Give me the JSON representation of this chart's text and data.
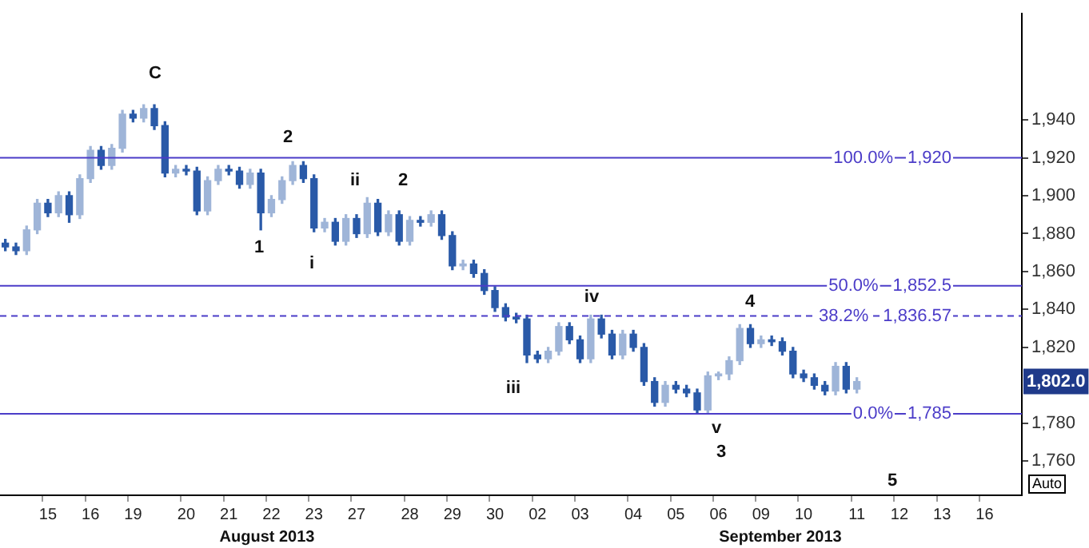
{
  "chart_data": {
    "type": "candlestick",
    "colors": [
      "#2a5aa8",
      "#2a5aa8",
      "#9fb5d8",
      "#9fb5d8",
      "#2a5aa8",
      "#9fb5d8",
      "#2a5aa8",
      "#9fb5d8",
      "#9fb5d8",
      "#2a5aa8",
      "#9fb5d8",
      "#9fb5d8",
      "#2a5aa8",
      "#9fb5d8",
      "#2a5aa8",
      "#2a5aa8",
      "#9fb5d8",
      "#2a5aa8",
      "#2a5aa8",
      "#9fb5d8",
      "#9fb5d8",
      "#2a5aa8",
      "#2a5aa8",
      "#9fb5d8",
      "#2a5aa8",
      "#9fb5d8",
      "#9fb5d8",
      "#9fb5d8",
      "#2a5aa8",
      "#2a5aa8",
      "#9fb5d8",
      "#2a5aa8",
      "#9fb5d8",
      "#2a5aa8",
      "#9fb5d8",
      "#2a5aa8",
      "#9fb5d8",
      "#2a5aa8",
      "#9fb5d8",
      "#2a5aa8",
      "#9fb5d8",
      "#2a5aa8",
      "#2a5aa8",
      "#9fb5d8",
      "#2a5aa8",
      "#2a5aa8",
      "#2a5aa8",
      "#2a5aa8",
      "#2a5aa8",
      "#2a5aa8",
      "#2a5aa8",
      "#9fb5d8",
      "#9fb5d8",
      "#2a5aa8",
      "#2a5aa8",
      "#9fb5d8",
      "#2a5aa8",
      "#2a5aa8",
      "#9fb5d8",
      "#2a5aa8",
      "#2a5aa8",
      "#2a5aa8",
      "#9fb5d8",
      "#2a5aa8",
      "#2a5aa8",
      "#2a5aa8",
      "#9fb5d8",
      "#9fb5d8",
      "#9fb5d8",
      "#9fb5d8",
      "#2a5aa8",
      "#9fb5d8",
      "#2a5aa8",
      "#2a5aa8",
      "#2a5aa8",
      "#2a5aa8",
      "#2a5aa8",
      "#2a5aa8",
      "#9fb5d8",
      "#2a5aa8",
      "#9fb5d8",
      null,
      null,
      null,
      null,
      null,
      null,
      null,
      null,
      null,
      null,
      null,
      null,
      null,
      null,
      null
    ],
    "categories": [
      null,
      null,
      null,
      null,
      "15",
      null,
      null,
      null,
      "16",
      null,
      null,
      null,
      "19",
      null,
      null,
      null,
      null,
      "20",
      null,
      null,
      null,
      "21",
      null,
      null,
      null,
      "22",
      null,
      null,
      null,
      "23",
      null,
      null,
      null,
      "27",
      null,
      null,
      null,
      null,
      "28",
      null,
      null,
      null,
      "29",
      null,
      null,
      null,
      "30",
      null,
      null,
      null,
      "02",
      null,
      null,
      null,
      "03",
      null,
      null,
      null,
      null,
      "04",
      null,
      null,
      null,
      "05",
      null,
      null,
      null,
      "06",
      null,
      null,
      null,
      "09",
      null,
      null,
      null,
      "10",
      null,
      null,
      null,
      null,
      "11",
      null,
      null,
      null,
      "12",
      null,
      null,
      null,
      "13",
      null,
      null,
      null,
      "16",
      null,
      null,
      null
    ],
    "ohlc": [
      [
        1875,
        1877,
        1871,
        1873
      ],
      [
        1873,
        1875,
        1869,
        1871
      ],
      [
        1871,
        1884,
        1869,
        1882
      ],
      [
        1882,
        1898,
        1880,
        1896
      ],
      [
        1896,
        1898,
        1889,
        1891
      ],
      [
        1891,
        1902,
        1889,
        1900
      ],
      [
        1900,
        1902,
        1886,
        1890
      ],
      [
        1890,
        1911,
        1888,
        1909
      ],
      [
        1909,
        1926,
        1907,
        1924
      ],
      [
        1924,
        1926,
        1914,
        1916
      ],
      [
        1916,
        1927,
        1914,
        1925
      ],
      [
        1925,
        1945,
        1923,
        1943
      ],
      [
        1943,
        1945,
        1939,
        1941
      ],
      [
        1941,
        1948,
        1939,
        1946
      ],
      [
        1946,
        1948,
        1935,
        1937
      ],
      [
        1937,
        1939,
        1910,
        1912
      ],
      [
        1912,
        1916,
        1910,
        1914
      ],
      [
        1914,
        1916,
        1911,
        1913
      ],
      [
        1913,
        1915,
        1890,
        1892
      ],
      [
        1892,
        1910,
        1890,
        1908
      ],
      [
        1908,
        1916,
        1906,
        1914
      ],
      [
        1914,
        1916,
        1911,
        1913
      ],
      [
        1913,
        1915,
        1904,
        1906
      ],
      [
        1906,
        1914,
        1904,
        1912
      ],
      [
        1912,
        1914,
        1882,
        1891
      ],
      [
        1891,
        1900,
        1889,
        1898
      ],
      [
        1898,
        1910,
        1896,
        1908
      ],
      [
        1908,
        1918,
        1906,
        1916
      ],
      [
        1916,
        1918,
        1907,
        1909
      ],
      [
        1909,
        1911,
        1881,
        1883
      ],
      [
        1883,
        1888,
        1881,
        1886
      ],
      [
        1886,
        1888,
        1874,
        1876
      ],
      [
        1876,
        1890,
        1874,
        1888
      ],
      [
        1888,
        1890,
        1878,
        1880
      ],
      [
        1880,
        1899,
        1878,
        1896
      ],
      [
        1896,
        1898,
        1879,
        1881
      ],
      [
        1881,
        1892,
        1879,
        1890
      ],
      [
        1890,
        1892,
        1874,
        1876
      ],
      [
        1876,
        1889,
        1874,
        1887
      ],
      [
        1887,
        1889,
        1884,
        1886
      ],
      [
        1886,
        1892,
        1884,
        1890
      ],
      [
        1890,
        1892,
        1877,
        1879
      ],
      [
        1879,
        1881,
        1861,
        1863
      ],
      [
        1863,
        1866,
        1861,
        1864
      ],
      [
        1864,
        1866,
        1857,
        1859
      ],
      [
        1859,
        1861,
        1848,
        1850
      ],
      [
        1850,
        1852,
        1839,
        1841
      ],
      [
        1841,
        1843,
        1834,
        1836
      ],
      [
        1836,
        1838,
        1833,
        1835
      ],
      [
        1835,
        1837,
        1812,
        1816
      ],
      [
        1816,
        1818,
        1812,
        1814
      ],
      [
        1814,
        1820,
        1812,
        1818
      ],
      [
        1818,
        1833,
        1816,
        1831
      ],
      [
        1831,
        1833,
        1822,
        1824
      ],
      [
        1824,
        1826,
        1812,
        1814
      ],
      [
        1814,
        1837,
        1812,
        1835
      ],
      [
        1835,
        1837,
        1825,
        1827
      ],
      [
        1827,
        1829,
        1814,
        1816
      ],
      [
        1816,
        1829,
        1814,
        1827
      ],
      [
        1827,
        1829,
        1818,
        1820
      ],
      [
        1820,
        1822,
        1800,
        1802
      ],
      [
        1802,
        1804,
        1789,
        1791
      ],
      [
        1791,
        1802,
        1789,
        1800
      ],
      [
        1800,
        1802,
        1796,
        1798
      ],
      [
        1798,
        1800,
        1794,
        1796
      ],
      [
        1796,
        1798,
        1785,
        1787
      ],
      [
        1787,
        1807,
        1785,
        1805
      ],
      [
        1805,
        1807,
        1803,
        1806
      ],
      [
        1806,
        1815,
        1803,
        1813
      ],
      [
        1813,
        1832,
        1811,
        1830
      ],
      [
        1830,
        1832,
        1820,
        1822
      ],
      [
        1822,
        1826,
        1820,
        1824
      ],
      [
        1824,
        1826,
        1821,
        1823
      ],
      [
        1823,
        1825,
        1816,
        1818
      ],
      [
        1818,
        1820,
        1804,
        1806
      ],
      [
        1806,
        1808,
        1802,
        1804
      ],
      [
        1804,
        1806,
        1798,
        1800
      ],
      [
        1800,
        1802,
        1795,
        1797
      ],
      [
        1797,
        1812,
        1795,
        1810
      ],
      [
        1810,
        1812,
        1796,
        1798
      ],
      [
        1798,
        1804,
        1796,
        1802
      ],
      null,
      null,
      null,
      null,
      null,
      null,
      null,
      null,
      null,
      null,
      null,
      null,
      null,
      null,
      null
    ],
    "ylim": [
      1742,
      1996
    ],
    "yticks": [
      {
        "value": 1760,
        "label": "1,760"
      },
      {
        "value": 1780,
        "label": "1,780"
      },
      {
        "value": 1820,
        "label": "1,820"
      },
      {
        "value": 1840,
        "label": "1,840"
      },
      {
        "value": 1860,
        "label": "1,860"
      },
      {
        "value": 1880,
        "label": "1,880"
      },
      {
        "value": 1900,
        "label": "1,900"
      },
      {
        "value": 1920,
        "label": "1,920"
      },
      {
        "value": 1940,
        "label": "1,940"
      }
    ],
    "ref_lines": [
      {
        "axis": "y",
        "value": 1920,
        "label": "100.0% 1,920",
        "color": "#4b3cc8",
        "line_style": "solid"
      },
      {
        "axis": "y",
        "value": 1852.5,
        "label": "50.0% 1,852.5",
        "color": "#4b3cc8",
        "line_style": "solid"
      },
      {
        "axis": "y",
        "value": 1836.57,
        "label": "38.2% 1,836.57",
        "color": "#4b3cc8",
        "line_style": "dashed"
      },
      {
        "axis": "y",
        "value": 1785,
        "label": "0.0% 1,785",
        "color": "#4b3cc8",
        "line_style": "solid"
      }
    ],
    "annotations": [
      "C",
      "2",
      "1",
      "i",
      "ii",
      "2",
      "iii",
      "iv",
      "v",
      "3",
      "4",
      "5",
      "1,802.0",
      "August 2013",
      "September 2013",
      "Auto"
    ],
    "grid": false,
    "legend": false
  }
}
